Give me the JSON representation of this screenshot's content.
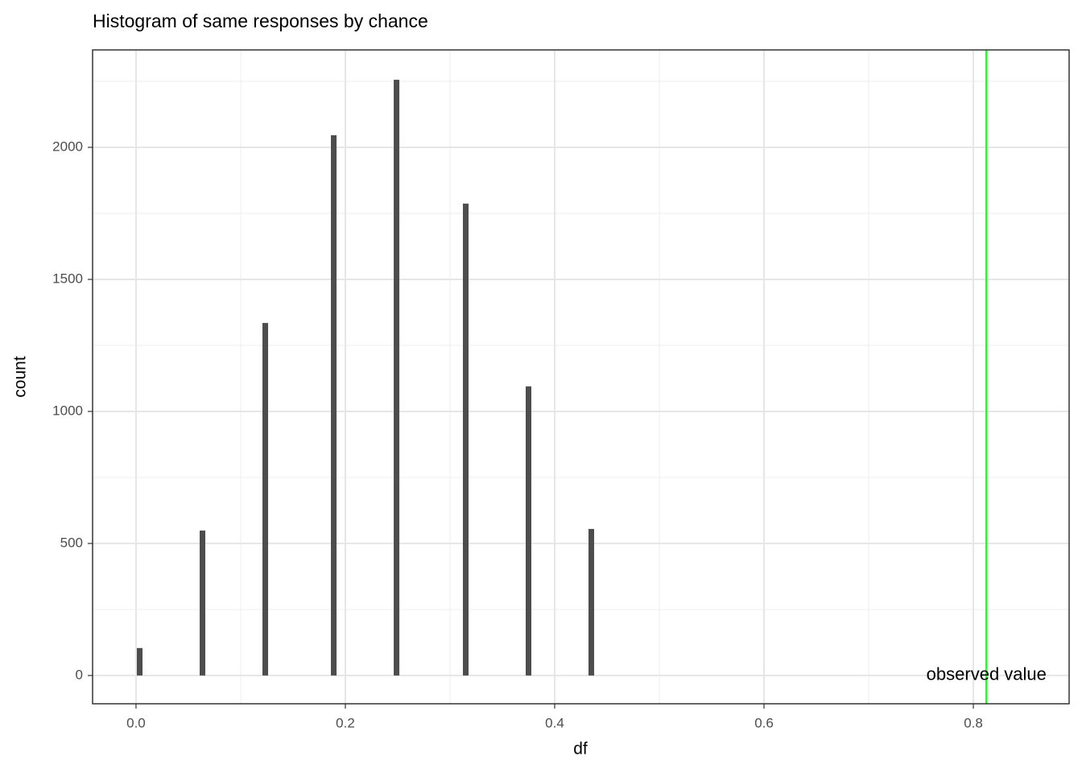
{
  "chart_data": {
    "type": "histogram",
    "title": "Histogram of same responses by chance",
    "x_label": "df",
    "y_label": "count",
    "bins": [
      0.0008,
      0.0062,
      0.0608,
      0.0662,
      0.1208,
      0.1262,
      0.1862,
      0.1916,
      0.2462,
      0.2516,
      0.3123,
      0.3177,
      0.3723,
      0.3777,
      0.4323,
      0.4377
    ],
    "values": [
      104,
      0,
      549,
      0,
      1335,
      0,
      2046,
      0,
      2256,
      0,
      1787,
      0,
      1095,
      0,
      555
    ],
    "color": "#4d4d4d",
    "xlim": [
      -0.0415,
      0.8915
    ],
    "xticks": [
      {
        "value": 0,
        "label": "0.0"
      },
      {
        "value": 0.2,
        "label": "0.2"
      },
      {
        "value": 0.4,
        "label": "0.4"
      },
      {
        "value": 0.6,
        "label": "0.6"
      },
      {
        "value": 0.8,
        "label": "0.8"
      }
    ],
    "ylim": [
      -107,
      2369
    ],
    "yticks": [
      0,
      500,
      1000,
      1500,
      2000
    ],
    "grid": true,
    "vline": {
      "x": 0.8125,
      "color": "#33ee33"
    },
    "annotation": {
      "text": "observed value",
      "x": 0.8125,
      "y": 0
    }
  }
}
